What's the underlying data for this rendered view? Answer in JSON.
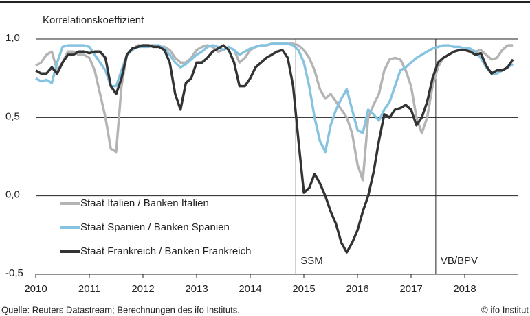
{
  "chart_data": {
    "type": "line",
    "ylabel": "Korrelationskoeffizient",
    "source": "Quelle: Reuters Datastream; Berechnungen des ifo Instituts.",
    "copyright": "© ifo Institut",
    "x": [
      2010,
      2010.1,
      2010.2,
      2010.3,
      2010.4,
      2010.5,
      2010.6,
      2010.7,
      2010.8,
      2010.9,
      2011,
      2011.1,
      2011.2,
      2011.3,
      2011.4,
      2011.5,
      2011.6,
      2011.7,
      2011.8,
      2011.9,
      2012,
      2012.1,
      2012.2,
      2012.3,
      2012.4,
      2012.5,
      2012.6,
      2012.7,
      2012.8,
      2012.9,
      2013,
      2013.1,
      2013.2,
      2013.3,
      2013.4,
      2013.5,
      2013.6,
      2013.7,
      2013.8,
      2013.9,
      2014,
      2014.1,
      2014.2,
      2014.3,
      2014.4,
      2014.5,
      2014.6,
      2014.7,
      2014.8,
      2014.9,
      2015,
      2015.1,
      2015.2,
      2015.3,
      2015.4,
      2015.5,
      2015.6,
      2015.7,
      2015.8,
      2015.9,
      2016,
      2016.1,
      2016.2,
      2016.3,
      2016.4,
      2016.5,
      2016.6,
      2016.7,
      2016.8,
      2016.9,
      2017,
      2017.1,
      2017.2,
      2017.3,
      2017.4,
      2017.5,
      2017.6,
      2017.7,
      2017.8,
      2017.9,
      2018,
      2018.1,
      2018.2,
      2018.3,
      2018.4,
      2018.5,
      2018.6,
      2018.7,
      2018.8,
      2018.9
    ],
    "series": [
      {
        "name": "Staat Italien / Banken Italien",
        "color": "#b4b4b4",
        "values": [
          0.83,
          0.85,
          0.9,
          0.92,
          0.8,
          0.85,
          0.92,
          0.92,
          0.9,
          0.9,
          0.88,
          0.8,
          0.65,
          0.5,
          0.3,
          0.28,
          0.7,
          0.9,
          0.93,
          0.96,
          0.96,
          0.96,
          0.96,
          0.95,
          0.95,
          0.93,
          0.88,
          0.85,
          0.85,
          0.88,
          0.93,
          0.95,
          0.96,
          0.95,
          0.92,
          0.93,
          0.95,
          0.93,
          0.85,
          0.88,
          0.93,
          0.95,
          0.96,
          0.96,
          0.97,
          0.97,
          0.97,
          0.97,
          0.97,
          0.96,
          0.93,
          0.88,
          0.8,
          0.68,
          0.62,
          0.65,
          0.6,
          0.55,
          0.5,
          0.4,
          0.2,
          0.1,
          0.5,
          0.58,
          0.65,
          0.8,
          0.87,
          0.88,
          0.87,
          0.8,
          0.7,
          0.5,
          0.4,
          0.5,
          0.7,
          0.82,
          0.88,
          0.9,
          0.92,
          0.93,
          0.93,
          0.93,
          0.92,
          0.93,
          0.9,
          0.87,
          0.88,
          0.93,
          0.96,
          0.96
        ]
      },
      {
        "name": "Staat Spanien / Banken Spanien",
        "color": "#86c3e1",
        "values": [
          0.75,
          0.73,
          0.74,
          0.72,
          0.85,
          0.95,
          0.96,
          0.96,
          0.96,
          0.96,
          0.95,
          0.9,
          0.85,
          0.8,
          0.7,
          0.7,
          0.8,
          0.9,
          0.93,
          0.95,
          0.95,
          0.95,
          0.96,
          0.96,
          0.94,
          0.9,
          0.85,
          0.82,
          0.84,
          0.87,
          0.9,
          0.92,
          0.95,
          0.96,
          0.95,
          0.93,
          0.95,
          0.93,
          0.9,
          0.92,
          0.94,
          0.95,
          0.96,
          0.96,
          0.97,
          0.97,
          0.97,
          0.97,
          0.96,
          0.93,
          0.85,
          0.7,
          0.5,
          0.35,
          0.28,
          0.45,
          0.55,
          0.62,
          0.68,
          0.55,
          0.42,
          0.4,
          0.55,
          0.52,
          0.48,
          0.55,
          0.6,
          0.7,
          0.8,
          0.82,
          0.85,
          0.88,
          0.9,
          0.92,
          0.94,
          0.95,
          0.96,
          0.96,
          0.95,
          0.95,
          0.94,
          0.94,
          0.92,
          0.88,
          0.82,
          0.78,
          0.78,
          0.8,
          0.82,
          0.84
        ]
      },
      {
        "name": "Staat Frankreich / Banken Frankreich",
        "color": "#333333",
        "values": [
          0.8,
          0.78,
          0.78,
          0.82,
          0.78,
          0.85,
          0.9,
          0.9,
          0.92,
          0.92,
          0.91,
          0.92,
          0.92,
          0.88,
          0.7,
          0.65,
          0.75,
          0.9,
          0.94,
          0.95,
          0.96,
          0.96,
          0.95,
          0.95,
          0.93,
          0.85,
          0.65,
          0.55,
          0.72,
          0.75,
          0.85,
          0.85,
          0.88,
          0.92,
          0.94,
          0.96,
          0.93,
          0.85,
          0.7,
          0.7,
          0.75,
          0.82,
          0.85,
          0.88,
          0.9,
          0.92,
          0.93,
          0.88,
          0.7,
          0.35,
          0.02,
          0.05,
          0.14,
          0.08,
          0.0,
          -0.1,
          -0.18,
          -0.3,
          -0.36,
          -0.3,
          -0.22,
          -0.1,
          0.0,
          0.15,
          0.35,
          0.52,
          0.5,
          0.55,
          0.56,
          0.58,
          0.55,
          0.45,
          0.5,
          0.6,
          0.75,
          0.85,
          0.88,
          0.9,
          0.92,
          0.93,
          0.93,
          0.92,
          0.9,
          0.91,
          0.83,
          0.78,
          0.8,
          0.8,
          0.82,
          0.87
        ]
      }
    ],
    "xlim": [
      2010,
      2019
    ],
    "xticks": [
      2010,
      2011,
      2012,
      2013,
      2014,
      2015,
      2016,
      2017,
      2018
    ],
    "ylim": [
      -0.5,
      1
    ],
    "yticks": [
      {
        "value": -0.5,
        "label": "-0,5"
      },
      {
        "value": 0,
        "label": "0,0"
      },
      {
        "value": 0.5,
        "label": "0,5"
      },
      {
        "value": 1,
        "label": "1,0"
      }
    ],
    "grid": true,
    "legend": "lower left",
    "annotations": [
      {
        "x": 2014.85,
        "label": "SSM"
      },
      {
        "x": 2017.46,
        "label": "VB/BPV"
      }
    ]
  }
}
